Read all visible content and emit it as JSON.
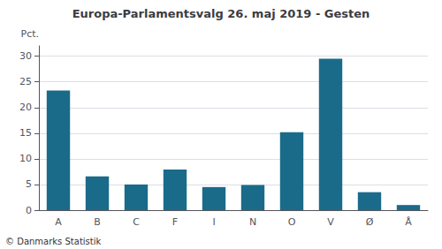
{
  "chart_data": {
    "type": "bar",
    "title": "Europa-Parlamentsvalg 26. maj 2019 - Gesten",
    "categories": [
      "A",
      "B",
      "C",
      "F",
      "I",
      "N",
      "O",
      "V",
      "Ø",
      "Å"
    ],
    "values": [
      23.3,
      6.6,
      5.0,
      7.9,
      4.5,
      4.9,
      15.2,
      29.5,
      3.5,
      1.0
    ],
    "color": "#1a6b8a",
    "ylabel": "Pct.",
    "annotations": [
      "© Danmarks Statistik"
    ],
    "ylim": [
      0,
      32
    ],
    "yticks": [
      0,
      5,
      10,
      15,
      20,
      25,
      30
    ],
    "grid": true
  }
}
